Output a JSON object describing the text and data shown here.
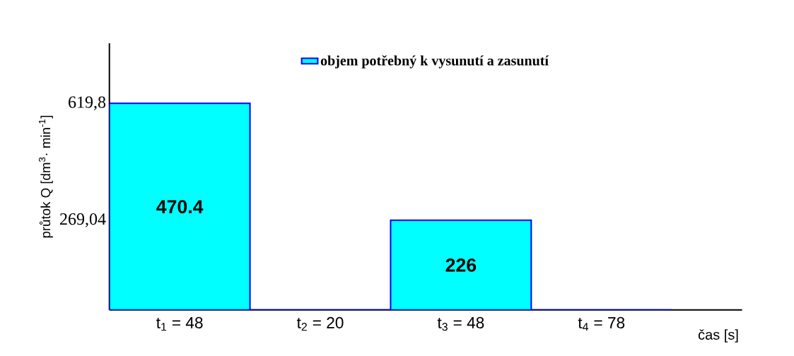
{
  "chart_data": {
    "type": "bar",
    "xlabel": "čas [s]",
    "ylabel": "průtok Q [dm$^{3}$· min$^{-1}$]",
    "categories": [
      "t$_{1}$ = 48",
      "t$_{2}$ = 20",
      "t$_{3}$ = 48",
      "t$_{4}$ = 78"
    ],
    "series": [
      {
        "name": "objem potřebný k vysunutí a zasunutí",
        "color": "#00ffff",
        "values": [
          619.8,
          0,
          269.04,
          0
        ]
      }
    ],
    "annotations": [
      "470.4",
      "226"
    ],
    "ylim": [
      0,
      800
    ],
    "yticks": [
      {
        "value": 269.04,
        "label": "269,04"
      },
      {
        "value": 619.8,
        "label": "619,8"
      }
    ],
    "legend": "top"
  }
}
